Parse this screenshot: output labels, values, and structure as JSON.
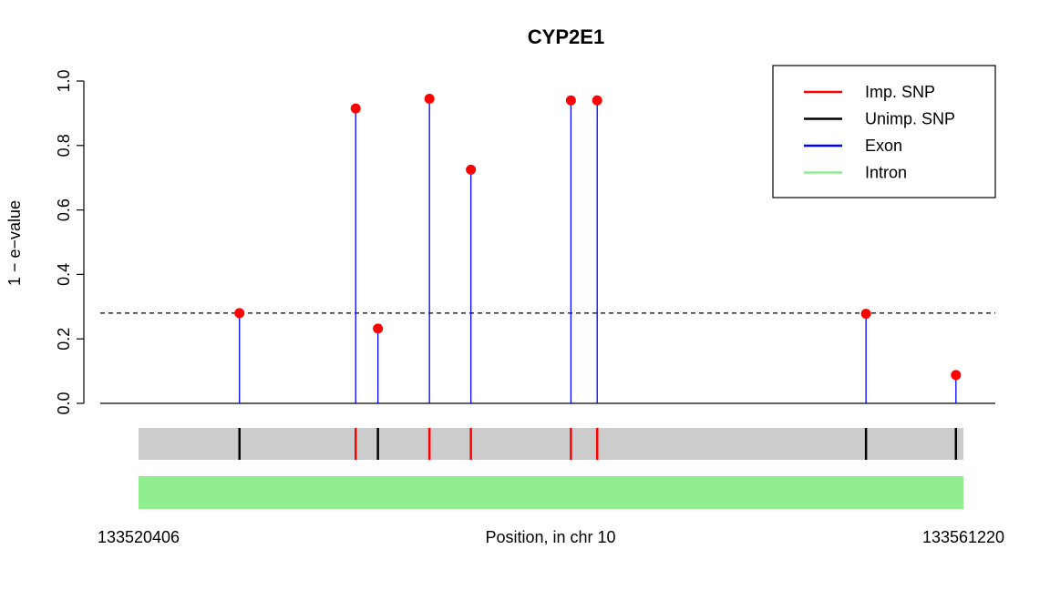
{
  "chart_data": {
    "type": "stem",
    "title": "CYP2E1",
    "ylabel": "1 − e−value",
    "xlabel": "Position, in chr 10",
    "x_start_label": "133520406",
    "x_end_label": "133561220",
    "xlim": [
      133520406,
      133561220
    ],
    "ylim": [
      0,
      1
    ],
    "yticks": [
      "0.0",
      "0.2",
      "0.4",
      "0.6",
      "0.8",
      "1.0"
    ],
    "threshold": 0.28,
    "points": [
      {
        "x": 133525400,
        "y": 0.28,
        "snp": "unimp"
      },
      {
        "x": 133531150,
        "y": 0.915,
        "snp": "imp"
      },
      {
        "x": 133532250,
        "y": 0.232,
        "snp": "unimp"
      },
      {
        "x": 133534800,
        "y": 0.945,
        "snp": "imp"
      },
      {
        "x": 133536850,
        "y": 0.725,
        "snp": "imp"
      },
      {
        "x": 133541800,
        "y": 0.94,
        "snp": "imp"
      },
      {
        "x": 133543100,
        "y": 0.94,
        "snp": "imp"
      },
      {
        "x": 133556400,
        "y": 0.278,
        "snp": "unimp"
      },
      {
        "x": 133560850,
        "y": 0.088,
        "snp": "unimp"
      }
    ],
    "legend": [
      {
        "label": "Imp. SNP",
        "color": "#ff0000"
      },
      {
        "label": "Unimp. SNP",
        "color": "#000000"
      },
      {
        "label": "Exon",
        "color": "#0000ff"
      },
      {
        "label": "Intron",
        "color": "#90ee90"
      }
    ],
    "legend_position": "top-right",
    "colors": {
      "stem": "#0000ff",
      "point": "#ff0000",
      "track": "#cccccc",
      "intron": "#90ee90",
      "imp_snp": "#ff0000",
      "unimp_snp": "#000000"
    }
  }
}
